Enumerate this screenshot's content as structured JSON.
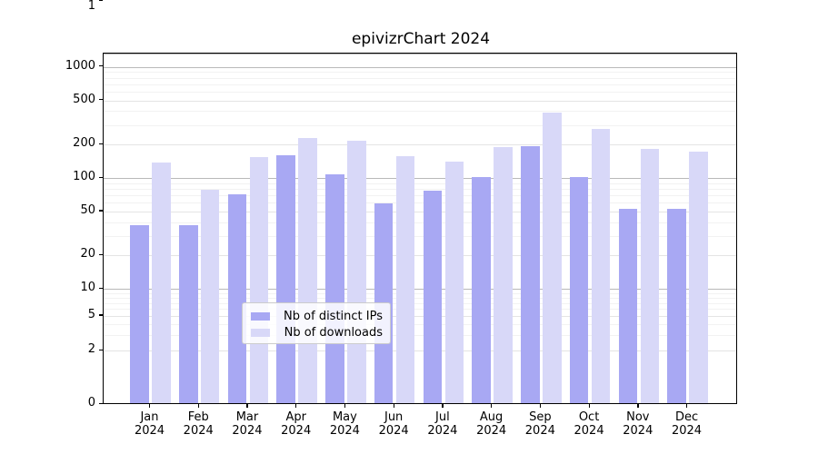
{
  "title": "epivizrChart 2024",
  "chart_data": {
    "type": "bar",
    "title": "epivizrChart 2024",
    "categories": [
      "Jan 2024",
      "Feb 2024",
      "Mar 2024",
      "Apr 2024",
      "May 2024",
      "Jun 2024",
      "Jul 2024",
      "Aug 2024",
      "Sep 2024",
      "Oct 2024",
      "Nov 2024",
      "Dec 2024"
    ],
    "series": [
      {
        "name": "Nb of distinct IPs",
        "color": "#a8a8f3",
        "values": [
          37,
          37,
          70,
          157,
          105,
          58,
          76,
          100,
          190,
          100,
          52,
          52
        ]
      },
      {
        "name": "Nb of downloads",
        "color": "#d8d8f8",
        "values": [
          134,
          77,
          150,
          225,
          213,
          155,
          137,
          186,
          380,
          272,
          180,
          169
        ]
      }
    ],
    "xlabel": "",
    "ylabel": "",
    "yscale": "log-like (0,1,2,5,10,20,50,100,200,500,1000)",
    "ytick_labels": [
      "0",
      "1",
      "2",
      "5",
      "10",
      "20",
      "50",
      "100",
      "200",
      "500",
      "1000"
    ],
    "ytick_values": [
      0,
      1,
      2,
      5,
      10,
      20,
      50,
      100,
      200,
      500,
      1000
    ],
    "ylim": [
      0,
      1300
    ],
    "grid": true,
    "legend_position": "lower center"
  },
  "legend": {
    "items": [
      {
        "label": "Nb of distinct IPs"
      },
      {
        "label": "Nb of downloads"
      }
    ]
  },
  "colors": {
    "bar_distinct_ips": "#a8a8f3",
    "bar_downloads": "#d8d8f8",
    "grid_major": "#b9b9b9",
    "grid_labeled": "#e4e4e4",
    "grid_minor": "#f2f2f2",
    "axis": "#000000",
    "background": "#ffffff",
    "legend_border": "#cccccc"
  }
}
